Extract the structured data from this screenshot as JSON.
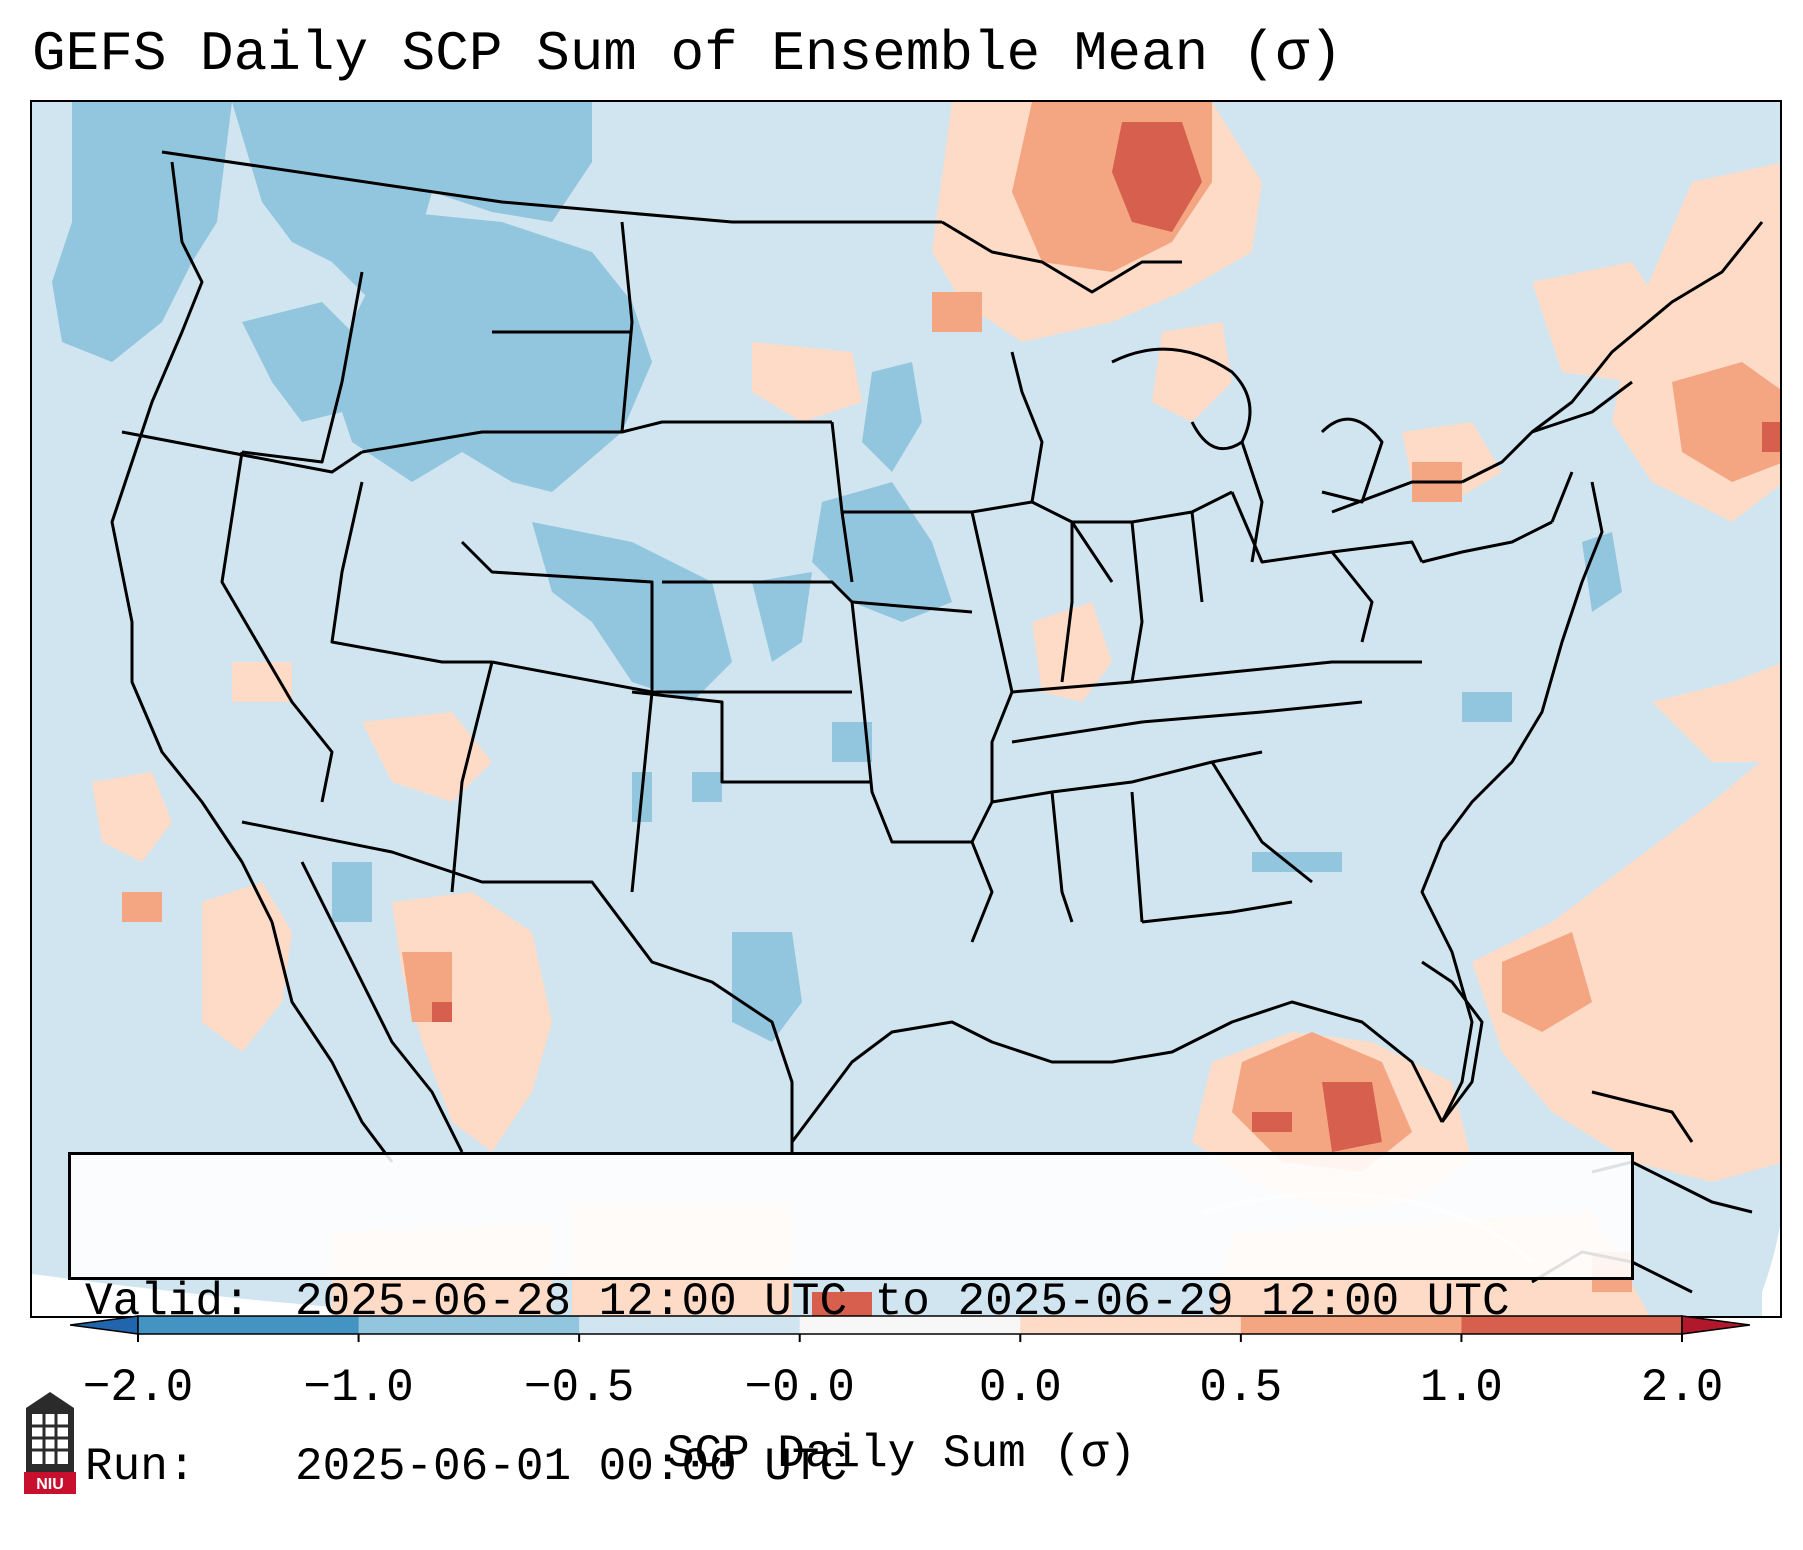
{
  "title": "GEFS Daily SCP Sum of Ensemble Mean (σ)",
  "info": {
    "valid_label": "Valid:",
    "valid_value": "2025-06-28 12:00 UTC to 2025-06-29 12:00 UTC",
    "run_label": "Run:",
    "run_value": "2025-06-01 00:00 UTC"
  },
  "colorbar": {
    "label": "SCP Daily Sum (σ)",
    "ticks": [
      "−2.0",
      "−1.0",
      "−0.5",
      "−0.0",
      "0.0",
      "0.5",
      "1.0",
      "2.0"
    ],
    "bins": [
      {
        "color": "#4393c3"
      },
      {
        "color": "#92c5de"
      },
      {
        "color": "#d1e5f0"
      },
      {
        "color": "#f7f7f7"
      },
      {
        "color": "#fddbc7"
      },
      {
        "color": "#f4a582"
      },
      {
        "color": "#d6604d"
      }
    ],
    "under_color": "#2166ac",
    "over_color": "#b2182b"
  },
  "map": {
    "background_color": "#d1e5f0",
    "region": "Contiguous United States, southern Canada, northern Mexico, Gulf of Mexico, Caribbean"
  },
  "logo": {
    "text": "NIU",
    "icon": "niu-logo-icon"
  }
}
